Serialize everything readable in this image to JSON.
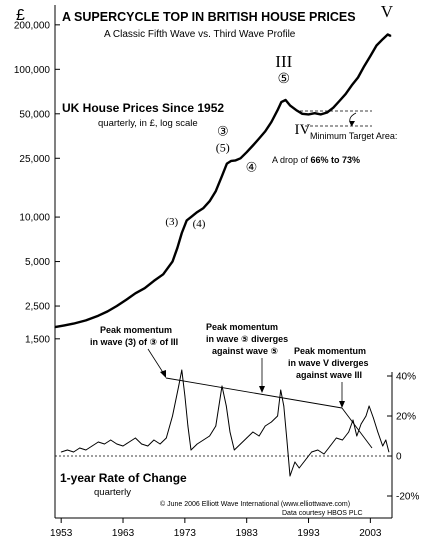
{
  "chart_data": [
    {
      "type": "line",
      "title": "A SUPERCYCLE TOP IN BRITISH HOUSE PRICES",
      "subtitle": "A Classic Fifth Wave vs. Third Wave Profile",
      "ylabel": "£",
      "yscale": "log",
      "ylim": [
        1300,
        260000
      ],
      "xlim": [
        1952,
        2006.5
      ],
      "grid": false,
      "x_ticks": [
        "1953",
        "1963",
        "1973",
        "1983",
        "1993",
        "2003"
      ],
      "y_ticks": [
        "1,500",
        "2,500",
        "5,000",
        "10,000",
        "25,000",
        "50,000",
        "100,000",
        "200,000"
      ],
      "series": [
        {
          "name": "UK House Prices Since 1952",
          "note": "quarterly, in £, log scale",
          "x": [
            1952.0,
            1953.5,
            1955.0,
            1957.0,
            1959.0,
            1960.5,
            1962.0,
            1963.5,
            1965.0,
            1966.5,
            1968.0,
            1969.5,
            1971.0,
            1971.8,
            1972.5,
            1973.3,
            1974.0,
            1975.0,
            1976.0,
            1977.0,
            1978.0,
            1979.0,
            1979.8,
            1980.5,
            1981.2,
            1982.0,
            1983.0,
            1984.0,
            1985.0,
            1986.0,
            1987.0,
            1988.0,
            1988.6,
            1989.3,
            1990.0,
            1991.0,
            1992.0,
            1993.0,
            1994.0,
            1995.0,
            1996.0,
            1997.0,
            1998.0,
            1999.0,
            2000.0,
            2001.0,
            2002.0,
            2003.0,
            2004.0,
            2005.0,
            2005.8,
            2006.3
          ],
          "values": [
            1800,
            1850,
            1900,
            2000,
            2150,
            2300,
            2500,
            2750,
            3050,
            3300,
            3700,
            4100,
            5000,
            6200,
            7800,
            9500,
            10000,
            10800,
            11500,
            12800,
            15000,
            19000,
            23000,
            24000,
            24200,
            25000,
            27500,
            30500,
            34000,
            38000,
            44000,
            53000,
            60000,
            62000,
            57000,
            53000,
            50000,
            49500,
            50500,
            49500,
            51000,
            55000,
            61000,
            68000,
            78000,
            88000,
            105000,
            123000,
            145000,
            160000,
            172000,
            168000
          ]
        },
        {
          "name": "1-year Rate of Change",
          "note": "quarterly",
          "ylim": [
            -22,
            42
          ],
          "y_ticks": [
            "40%",
            "20%",
            "0",
            "-20%"
          ],
          "x": [
            1953,
            1954,
            1955,
            1956,
            1957,
            1958,
            1959,
            1960,
            1961,
            1962,
            1963,
            1964,
            1965,
            1966,
            1967,
            1968,
            1969,
            1970,
            1971,
            1972,
            1972.5,
            1973,
            1973.5,
            1974,
            1975,
            1976,
            1977,
            1978,
            1979,
            1979.7,
            1980.3,
            1981,
            1982,
            1983,
            1984,
            1985,
            1986,
            1987,
            1988,
            1988.5,
            1989,
            1989.5,
            1990,
            1990.8,
            1991.5,
            1992.5,
            1993.5,
            1994.5,
            1995.5,
            1996.5,
            1997.5,
            1998.5,
            1999.5,
            2000.2,
            2000.8,
            2001.5,
            2002.3,
            2002.8,
            2003.5,
            2004.2,
            2005,
            2005.5,
            2006
          ],
          "values": [
            2,
            3,
            2,
            4,
            3,
            5,
            7,
            6,
            8,
            6,
            5,
            7,
            9,
            6,
            5,
            8,
            6,
            9,
            20,
            35,
            43,
            30,
            15,
            3,
            6,
            8,
            10,
            15,
            35,
            25,
            12,
            3,
            6,
            9,
            12,
            10,
            15,
            17,
            20,
            33,
            25,
            8,
            -10,
            -3,
            -6,
            -2,
            2,
            3,
            1,
            5,
            9,
            8,
            12,
            18,
            10,
            16,
            20,
            25,
            19,
            12,
            5,
            8,
            2
          ]
        }
      ],
      "wave_labels": [
        {
          "label": "(3)",
          "x": 1972.5
        },
        {
          "label": "(4)",
          "x": 1974.0
        },
        {
          "label": "③",
          "x": 1979.3
        },
        {
          "label": "(5)",
          "x": 1979.3
        },
        {
          "label": "④",
          "x": 1981.5
        },
        {
          "label": "⑤",
          "x": 1989.0
        },
        {
          "label": "III",
          "x": 1989.0
        },
        {
          "label": "IV",
          "x": 1992.5
        },
        {
          "label": "V",
          "x": 2006.0
        }
      ],
      "annotations": {
        "target_area": {
          "title": "Minimum Target Area:",
          "prefix": "A drop of ",
          "value": "66% to 73%"
        },
        "peak_momentum_1": {
          "line1": "Peak momentum",
          "line2": "in wave (3) of ③ of III"
        },
        "peak_momentum_2": {
          "line1": "Peak momentum",
          "line2": "in wave ⑤ diverges",
          "line3": "against wave ⑤"
        },
        "peak_momentum_3": {
          "line1": "Peak momentum",
          "line2": "in wave V diverges",
          "line3": "against wave III"
        },
        "copyright": "© June 2006 Elliott Wave International (www.elliottwave.com)",
        "source": "Data courtesy HBOS PLC"
      }
    }
  ]
}
